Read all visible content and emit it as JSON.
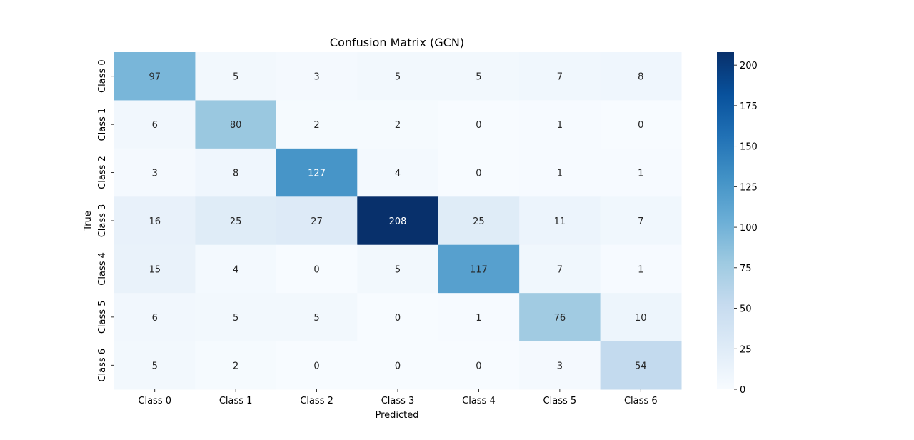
{
  "chart_data": {
    "type": "heatmap",
    "title": "Confusion Matrix (GCN)",
    "xlabel": "Predicted",
    "ylabel": "True",
    "x_categories": [
      "Class 0",
      "Class 1",
      "Class 2",
      "Class 3",
      "Class 4",
      "Class 5",
      "Class 6"
    ],
    "y_categories": [
      "Class 0",
      "Class 1",
      "Class 2",
      "Class 3",
      "Class 4",
      "Class 5",
      "Class 6"
    ],
    "matrix": [
      [
        97,
        5,
        3,
        5,
        5,
        7,
        8
      ],
      [
        6,
        80,
        2,
        2,
        0,
        1,
        0
      ],
      [
        3,
        8,
        127,
        4,
        0,
        1,
        1
      ],
      [
        16,
        25,
        27,
        208,
        25,
        11,
        7
      ],
      [
        15,
        4,
        0,
        5,
        117,
        7,
        1
      ],
      [
        6,
        5,
        5,
        0,
        1,
        76,
        10
      ],
      [
        5,
        2,
        0,
        0,
        0,
        3,
        54
      ]
    ],
    "colormap": "Blues",
    "vmin": 0,
    "vmax": 208,
    "colorbar_ticks": [
      0,
      25,
      50,
      75,
      100,
      125,
      150,
      175,
      200
    ],
    "colorbar_tick_labels": [
      "0",
      "25",
      "50",
      "75",
      "100",
      "125",
      "150",
      "175",
      "200"
    ]
  }
}
